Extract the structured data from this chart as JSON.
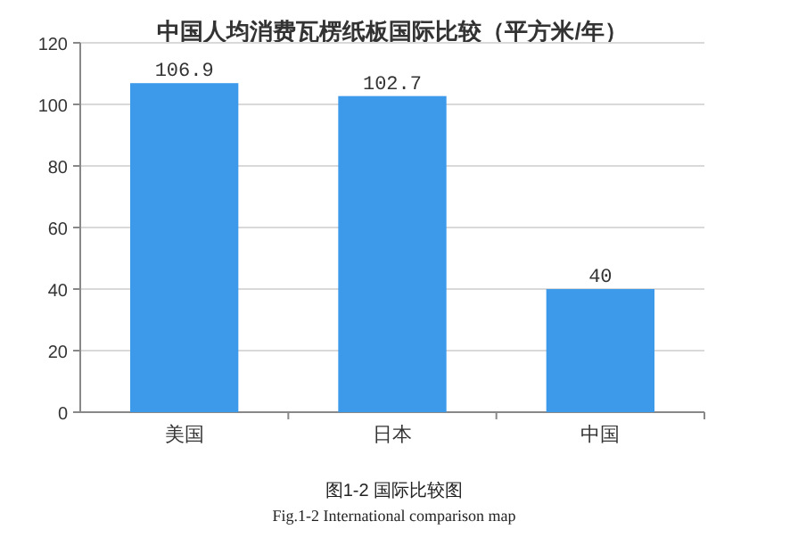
{
  "chart_data": {
    "type": "bar",
    "title": "中国人均消费瓦楞纸板国际比较（平方米/年）",
    "categories": [
      "美国",
      "日本",
      "中国"
    ],
    "values": [
      106.9,
      102.7,
      40
    ],
    "value_labels": [
      "106.9",
      "102.7",
      "40"
    ],
    "color": "#3d9aea",
    "ylim": [
      0,
      120
    ],
    "yticks": [
      0,
      20,
      40,
      60,
      80,
      100,
      120
    ],
    "grid": "y",
    "annotations": [
      "图1-2  国际比较图",
      "Fig.1-2 International comparison map"
    ]
  }
}
